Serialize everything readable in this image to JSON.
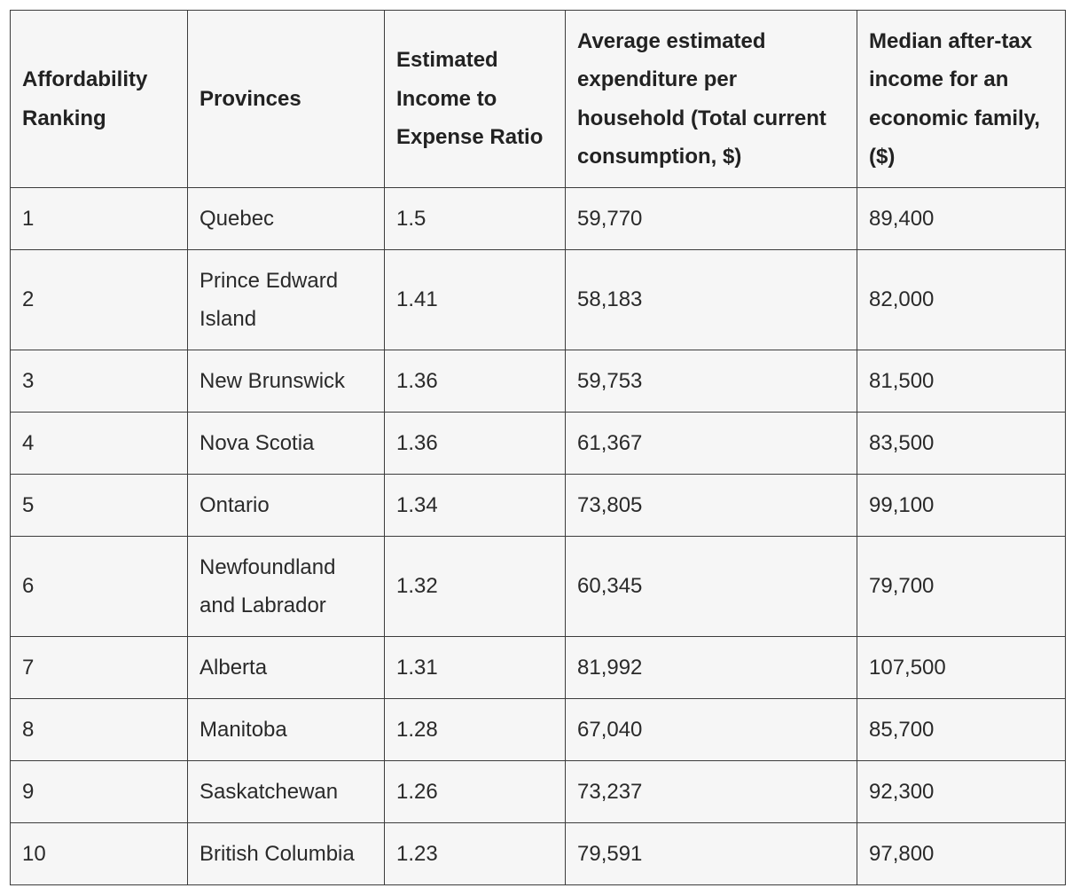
{
  "table": {
    "headers": [
      "Affordability Ranking",
      "Provinces",
      "Estimated Income to Expense Ratio",
      "Average estimated expenditure per household (Total current consumption, $)",
      "Median after-tax income for an economic family, ($)"
    ],
    "rows": [
      [
        "1",
        "Quebec",
        "1.5",
        "59,770",
        "89,400"
      ],
      [
        "2",
        "Prince Edward Island",
        "1.41",
        "58,183",
        "82,000"
      ],
      [
        "3",
        "New Brunswick",
        "1.36",
        "59,753",
        "81,500"
      ],
      [
        "4",
        "Nova Scotia",
        "1.36",
        "61,367",
        "83,500"
      ],
      [
        "5",
        "Ontario",
        "1.34",
        "73,805",
        "99,100"
      ],
      [
        "6",
        "Newfoundland and Labrador",
        "1.32",
        "60,345",
        "79,700"
      ],
      [
        "7",
        "Alberta",
        "1.31",
        "81,992",
        "107,500"
      ],
      [
        "8",
        "Manitoba",
        "1.28",
        "67,040",
        "85,700"
      ],
      [
        "9",
        "Saskatchewan",
        "1.26",
        "73,237",
        "92,300"
      ],
      [
        "10",
        "British Columbia",
        "1.23",
        "79,591",
        "97,800"
      ]
    ]
  }
}
